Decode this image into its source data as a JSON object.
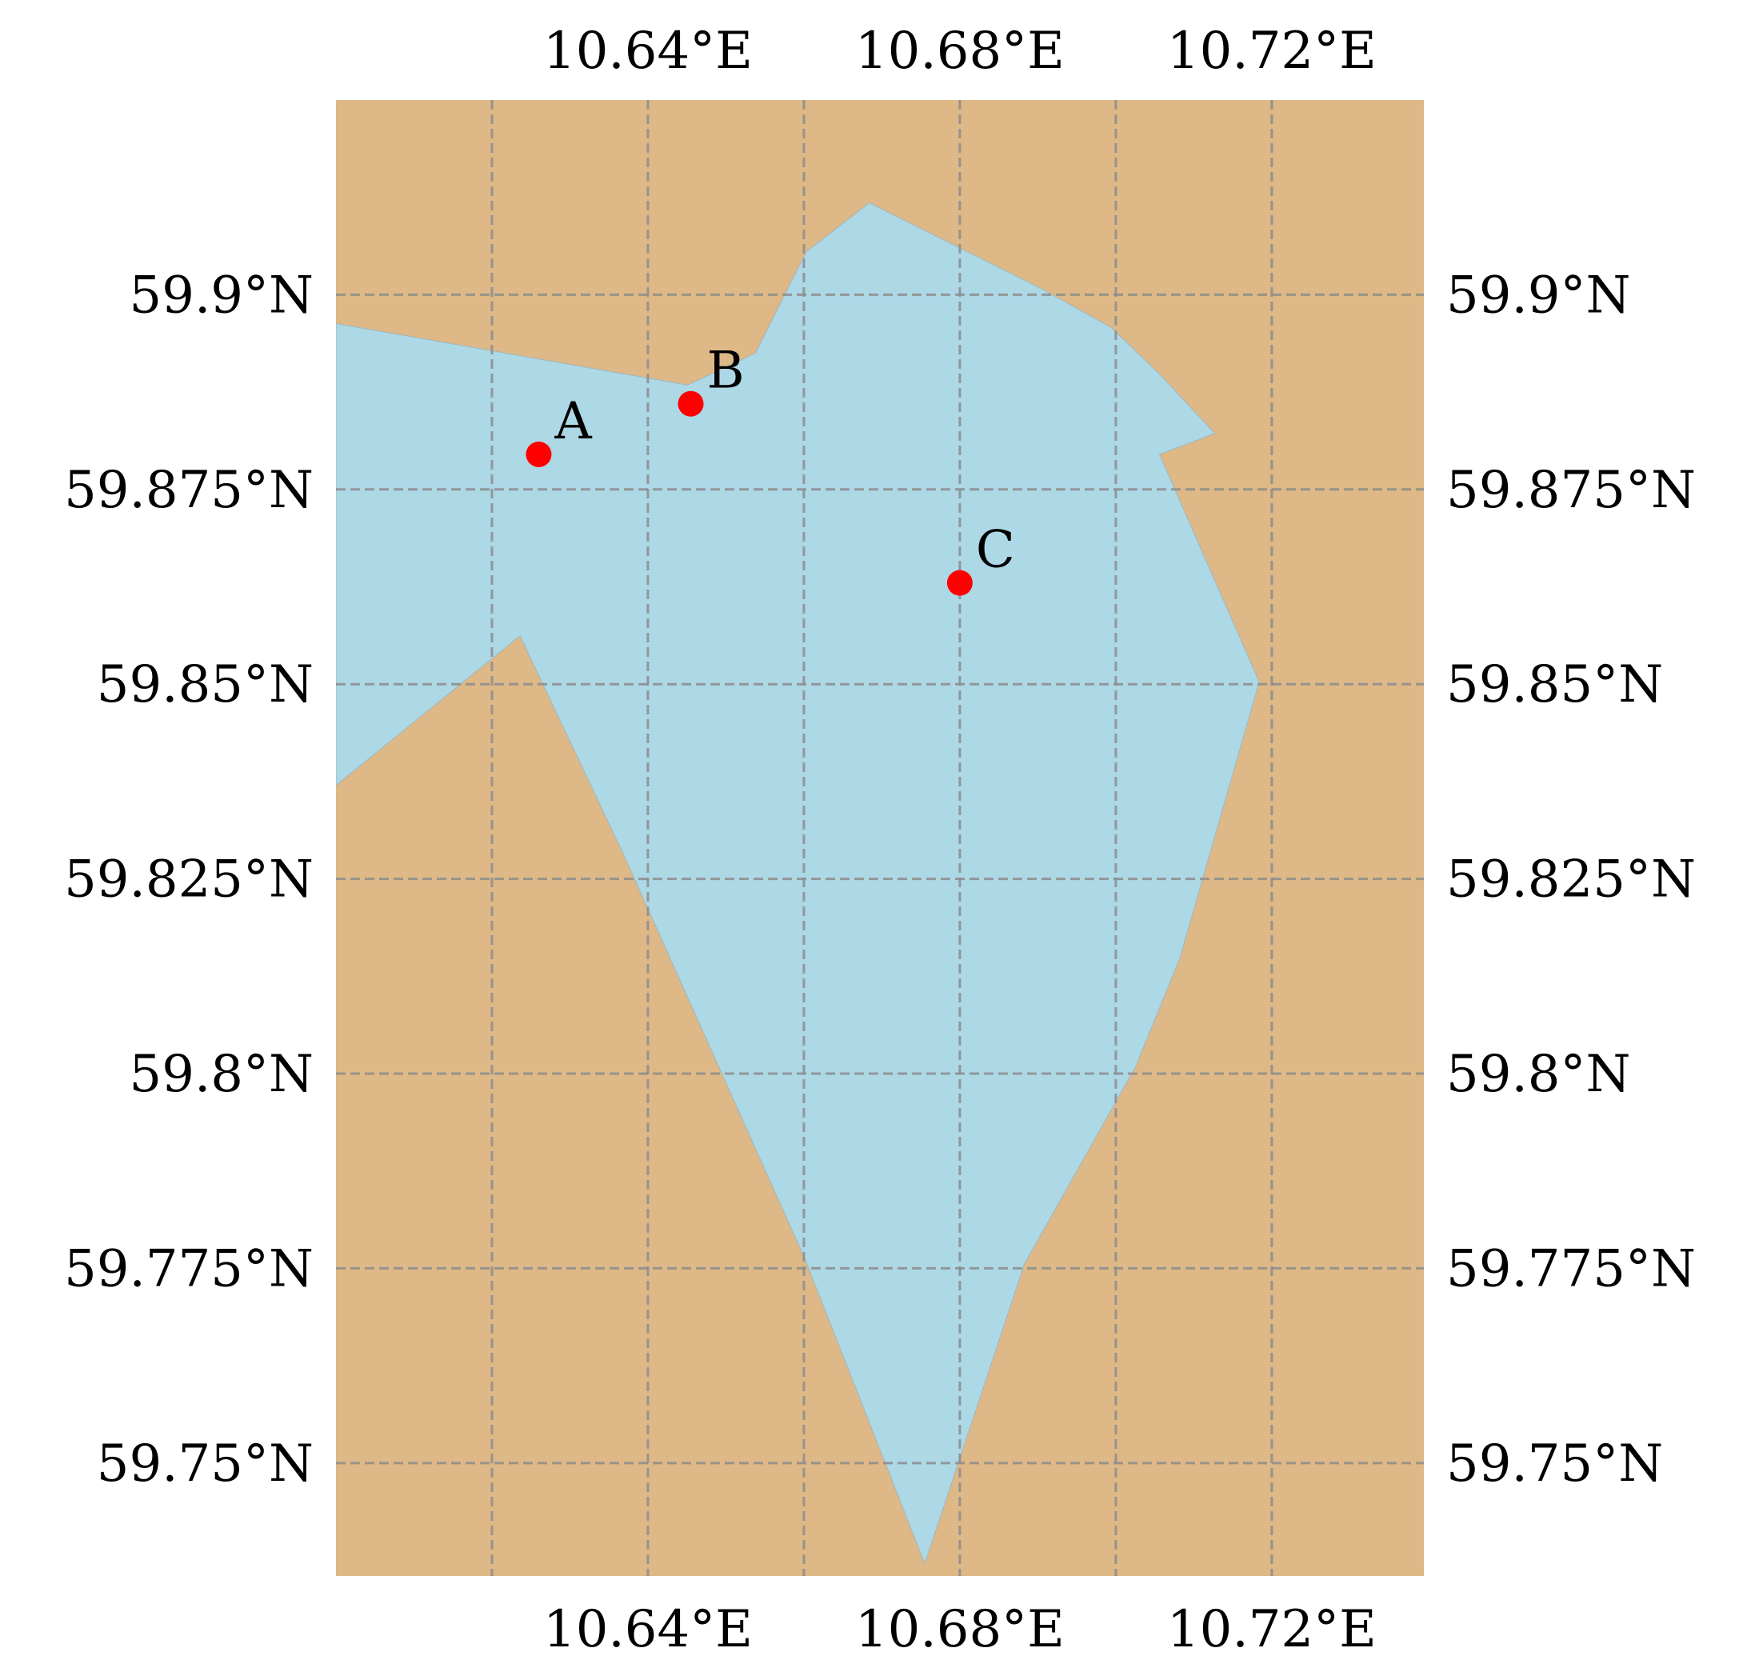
{
  "map": {
    "colors": {
      "land": "#deb887",
      "water": "#add8e6",
      "point": "#ff0000",
      "grid": "#8c8c8c"
    },
    "extent": {
      "lon": [
        10.6,
        10.7395
      ],
      "lat": [
        59.7355,
        59.925
      ]
    },
    "lon_ticks": [
      {
        "value": 10.62,
        "label": ""
      },
      {
        "value": 10.64,
        "label": "10.64°E"
      },
      {
        "value": 10.66,
        "label": ""
      },
      {
        "value": 10.68,
        "label": "10.68°E"
      },
      {
        "value": 10.7,
        "label": ""
      },
      {
        "value": 10.72,
        "label": "10.72°E"
      }
    ],
    "lat_ticks": [
      {
        "value": 59.9,
        "label": "59.9°N"
      },
      {
        "value": 59.875,
        "label": "59.875°N"
      },
      {
        "value": 59.85,
        "label": "59.85°N"
      },
      {
        "value": 59.825,
        "label": "59.825°N"
      },
      {
        "value": 59.8,
        "label": "59.8°N"
      },
      {
        "value": 59.775,
        "label": "59.775°N"
      },
      {
        "value": 59.75,
        "label": "59.75°N"
      }
    ],
    "points": [
      {
        "name": "A",
        "lon": 10.626,
        "lat": 59.8795
      },
      {
        "name": "B",
        "lon": 10.6455,
        "lat": 59.886
      },
      {
        "name": "C",
        "lon": 10.68,
        "lat": 59.863
      }
    ],
    "water_polygon": [
      [
        10.6,
        59.8963
      ],
      [
        10.6451,
        59.8884
      ],
      [
        10.6538,
        59.8925
      ],
      [
        10.6603,
        59.9055
      ],
      [
        10.6684,
        59.9118
      ],
      [
        10.6906,
        59.9007
      ],
      [
        10.6994,
        59.8958
      ],
      [
        10.7057,
        59.8897
      ],
      [
        10.7127,
        59.8822
      ],
      [
        10.7056,
        59.8795
      ],
      [
        10.7184,
        59.8503
      ],
      [
        10.7082,
        59.8148
      ],
      [
        10.7025,
        59.8008
      ],
      [
        10.6883,
        59.7756
      ],
      [
        10.6755,
        59.7371
      ],
      [
        10.6601,
        59.7763
      ],
      [
        10.6369,
        59.8281
      ],
      [
        10.6236,
        59.8562
      ],
      [
        10.6,
        59.837
      ]
    ]
  }
}
